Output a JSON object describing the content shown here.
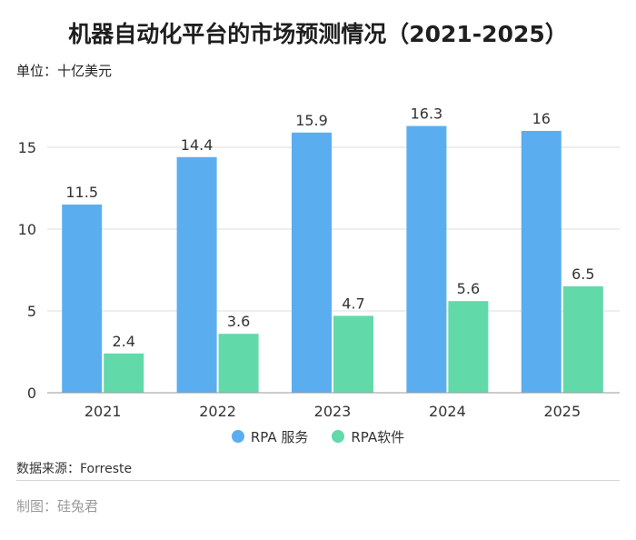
{
  "chart_data": {
    "type": "bar",
    "title": "机器自动化平台的市场预测情况（2021-2025）",
    "unit": "单位：十亿美元",
    "categories": [
      "2021",
      "2022",
      "2023",
      "2024",
      "2025"
    ],
    "series": [
      {
        "name": "RPA 服务",
        "color": "#5AAEF0",
        "values": [
          11.5,
          14.4,
          15.9,
          16.3,
          16
        ]
      },
      {
        "name": "RPA软件",
        "color": "#62D9A9",
        "values": [
          2.4,
          3.6,
          4.7,
          5.6,
          6.5
        ]
      }
    ],
    "ylim": [
      0,
      18
    ],
    "yticks": [
      0,
      5,
      10,
      15
    ],
    "grid": true,
    "data_labels": true,
    "legend": "bottom-center"
  },
  "footer": {
    "source": "数据来源：Forreste",
    "credit": "制图：硅兔君"
  }
}
